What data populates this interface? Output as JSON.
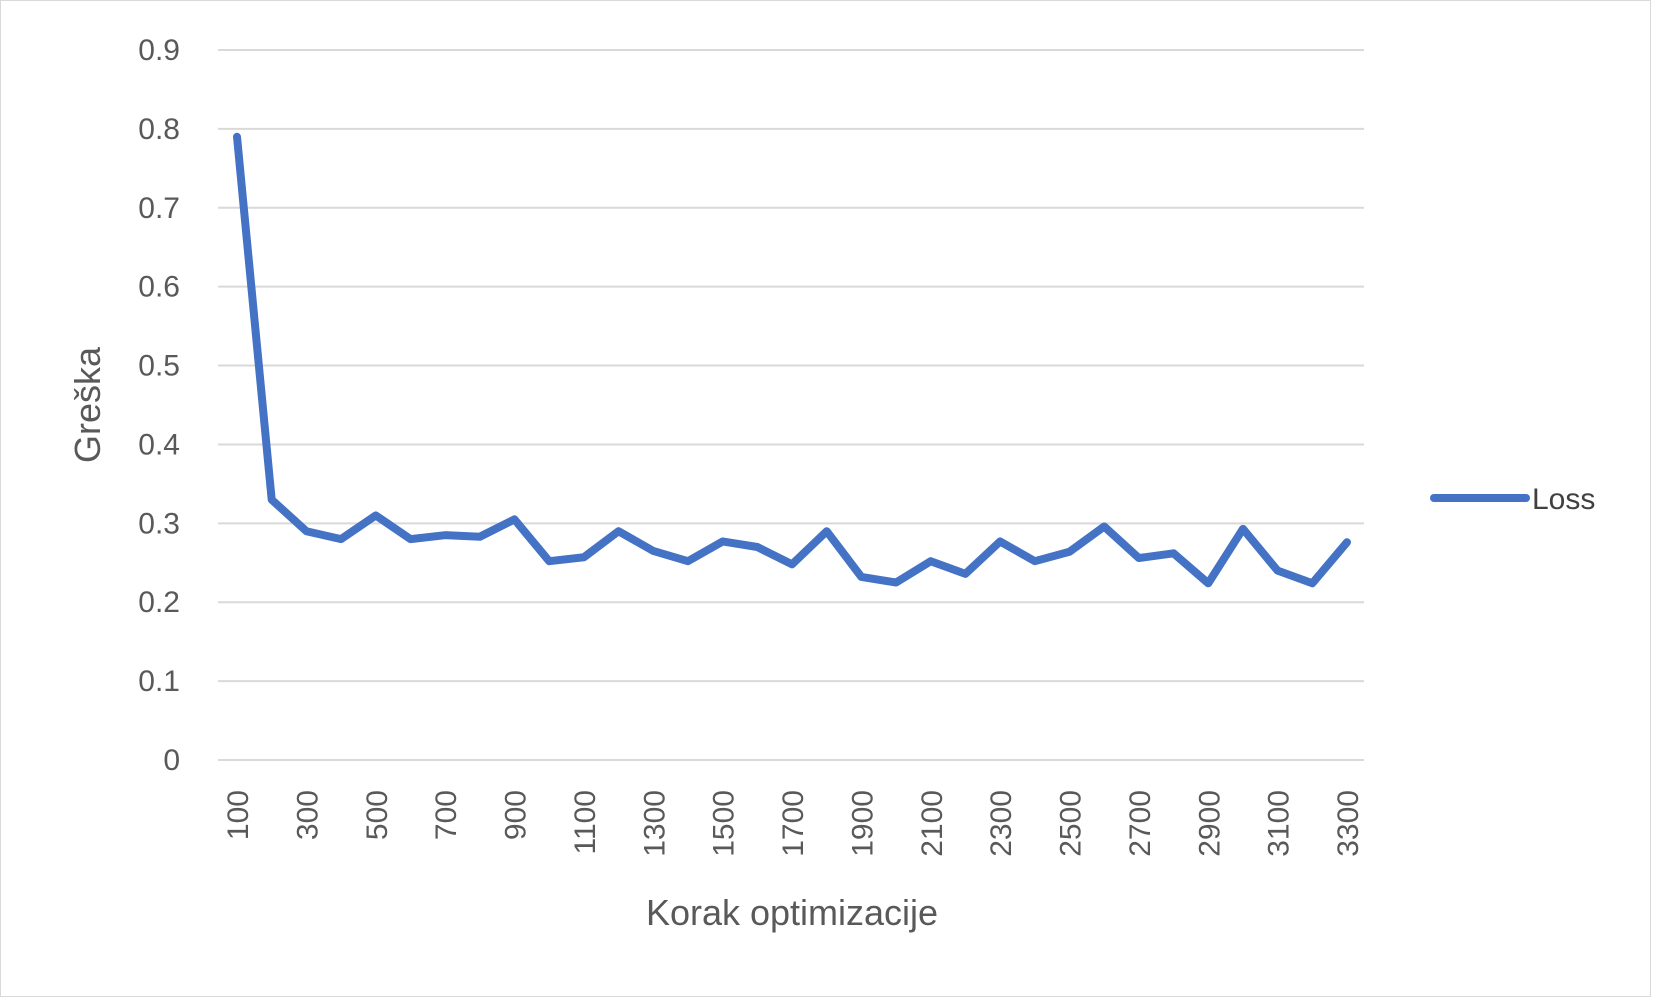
{
  "chart_data": {
    "type": "line",
    "title": "",
    "xlabel": "Korak optimizacije",
    "ylabel": "Greška",
    "ylim": [
      0,
      0.9
    ],
    "yticks": [
      "0",
      "0.1",
      "0.2",
      "0.3",
      "0.4",
      "0.5",
      "0.6",
      "0.7",
      "0.8",
      "0.9"
    ],
    "x": [
      100,
      200,
      300,
      400,
      500,
      600,
      700,
      800,
      900,
      1000,
      1100,
      1200,
      1300,
      1400,
      1500,
      1600,
      1700,
      1800,
      1900,
      2000,
      2100,
      2200,
      2300,
      2400,
      2500,
      2600,
      2700,
      2800,
      2900,
      3000,
      3100,
      3200,
      3300
    ],
    "xtick_labels": [
      "100",
      "300",
      "500",
      "700",
      "900",
      "1100",
      "1300",
      "1500",
      "1700",
      "1900",
      "2100",
      "2300",
      "2500",
      "2700",
      "2900",
      "3100",
      "3300"
    ],
    "series": [
      {
        "name": "Loss",
        "color": "#4472c4",
        "values": [
          0.79,
          0.33,
          0.29,
          0.28,
          0.31,
          0.28,
          0.285,
          0.283,
          0.305,
          0.252,
          0.257,
          0.29,
          0.265,
          0.252,
          0.277,
          0.27,
          0.248,
          0.29,
          0.232,
          0.225,
          0.252,
          0.236,
          0.277,
          0.252,
          0.264,
          0.296,
          0.256,
          0.262,
          0.224,
          0.293,
          0.24,
          0.224,
          0.276
        ]
      }
    ],
    "grid": true,
    "legend_position": "right"
  }
}
